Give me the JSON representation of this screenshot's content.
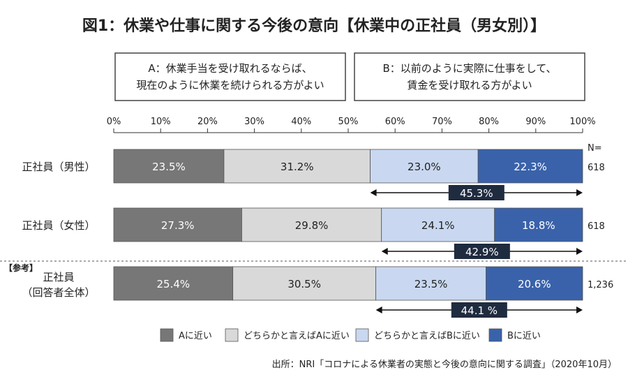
{
  "title": "図1：休業や仕事に関する今後の意向【休業中の正社員（男女別）】",
  "option_boxes": [
    {
      "lines": [
        "A：休業手当を受け取れるならば、",
        "現在のように休業を続けられる方がよい"
      ]
    },
    {
      "lines": [
        "B：以前のように実際に仕事をして、",
        "賃金を受け取れる方がよい"
      ]
    }
  ],
  "n_header": "N=",
  "reference_tag": "【参考】",
  "source": "出所：NRI「コロナによる休業者の実態と今後の意向に関する調査」（2020年10月）",
  "colors": {
    "a_close": "#777777",
    "rather_a": "#d9d9d9",
    "rather_b": "#c9d8f0",
    "b_close": "#3a62aa",
    "span_label_bg": "#1f2b3f"
  },
  "chart_data": {
    "type": "bar",
    "orientation": "horizontal",
    "stacked": true,
    "xlim": [
      0,
      100
    ],
    "ticks": [
      "0%",
      "10%",
      "20%",
      "30%",
      "40%",
      "50%",
      "60%",
      "70%",
      "80%",
      "90%",
      "100%"
    ],
    "categories": [
      {
        "lines": [
          "正社員（男性）"
        ],
        "n": "618",
        "span_label": "45.3%"
      },
      {
        "lines": [
          "正社員（女性）"
        ],
        "n": "618",
        "span_label": "42.9%"
      },
      {
        "lines": [
          "正社員",
          "（回答者全体）"
        ],
        "n": "1,236",
        "span_label": "44.1 %",
        "reference": true
      }
    ],
    "series": [
      {
        "name": "Aに近い",
        "values": [
          23.5,
          27.3,
          25.4
        ],
        "labels": [
          "23.5%",
          "27.3%",
          "25.4%"
        ]
      },
      {
        "name": "どちらかと言えばAに近い",
        "values": [
          31.2,
          29.8,
          30.5
        ],
        "labels": [
          "31.2%",
          "29.8%",
          "30.5%"
        ]
      },
      {
        "name": "どちらかと言えばBに近い",
        "values": [
          23.0,
          24.1,
          23.5
        ],
        "labels": [
          "23.0%",
          "24.1%",
          "23.5%"
        ]
      },
      {
        "name": "Bに近い",
        "values": [
          22.3,
          18.8,
          20.6
        ],
        "labels": [
          "22.3%",
          "18.8%",
          "20.6%"
        ]
      }
    ],
    "legend_position": "bottom"
  }
}
